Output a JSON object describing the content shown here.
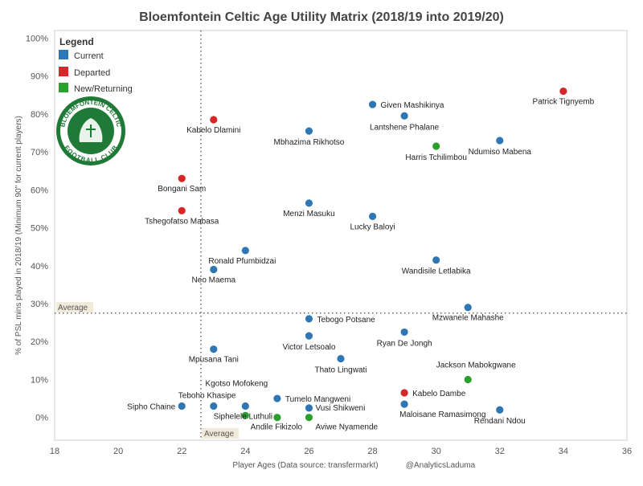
{
  "chart_data": {
    "type": "scatter",
    "title": "Bloemfontein Celtic Age Utility Matrix (2018/19 into 2019/20)",
    "xlabel": "Player Ages (Data source: transfermarkt)",
    "credit": "@AnalyticsLaduma",
    "ylabel": "% of PSL mins played in 2018/19 (Minimum 90\" for current players)",
    "xlim": [
      18,
      36
    ],
    "ylim": [
      -6,
      102
    ],
    "x_ticks": [
      18,
      20,
      22,
      24,
      26,
      28,
      30,
      32,
      34,
      36
    ],
    "y_ticks": [
      0,
      10,
      20,
      30,
      40,
      50,
      60,
      70,
      80,
      90,
      100
    ],
    "y_tick_labels": [
      "0%",
      "10%",
      "20%",
      "30%",
      "40%",
      "50%",
      "60%",
      "70%",
      "80%",
      "90%",
      "100%"
    ],
    "reference_lines": {
      "x_average": 22.6,
      "y_average": 27.5,
      "x_label": "Average",
      "y_label": "Average"
    },
    "grid": false,
    "legend": {
      "title": "Legend",
      "position": "top-left",
      "items": [
        {
          "label": "Current",
          "color": "#2f77b4"
        },
        {
          "label": "Departed",
          "color": "#d62728"
        },
        {
          "label": "New/Returning",
          "color": "#2ca02c"
        }
      ]
    },
    "logo_text": "BLOEMFONTEIN CELTIC FOOTBALL CLUB",
    "series": [
      {
        "name": "Current",
        "color": "#2f77b4",
        "points": [
          {
            "label": "Given Mashikinya",
            "x": 28,
            "y": 82.5
          },
          {
            "label": "Lantshene Phalane",
            "x": 29,
            "y": 79.5
          },
          {
            "label": "Mbhazima Rikhotso",
            "x": 26,
            "y": 75.5
          },
          {
            "label": "Ndumiso Mabena",
            "x": 32,
            "y": 73
          },
          {
            "label": "Menzi Masuku",
            "x": 26,
            "y": 56.5
          },
          {
            "label": "Lucky Baloyi",
            "x": 28,
            "y": 53
          },
          {
            "label": "Ronald Pfumbidzai",
            "x": 24,
            "y": 44
          },
          {
            "label": "Wandisile Letlabika",
            "x": 30,
            "y": 41.5
          },
          {
            "label": "Neo Maema",
            "x": 23,
            "y": 39
          },
          {
            "label": "Mzwanele Mahashe",
            "x": 31,
            "y": 29
          },
          {
            "label": "Tebogo Potsane",
            "x": 26,
            "y": 26
          },
          {
            "label": "Ryan De Jongh",
            "x": 29,
            "y": 22.5
          },
          {
            "label": "Victor Letsoalo",
            "x": 26,
            "y": 21.5
          },
          {
            "label": "Mpusana Tani",
            "x": 23,
            "y": 18
          },
          {
            "label": "Thato Lingwati",
            "x": 27,
            "y": 15.5
          },
          {
            "label": "Kgotso Mofokeng",
            "x": 24,
            "y": 3
          },
          {
            "label": "Tumelo Mangweni",
            "x": 25,
            "y": 5
          },
          {
            "label": "Teboho Khasipe",
            "x": 23,
            "y": 3
          },
          {
            "label": "Sipho Chaine",
            "x": 22,
            "y": 3
          },
          {
            "label": "Vusi Shikweni",
            "x": 26,
            "y": 2.5
          },
          {
            "label": "Maloisane Ramasimong",
            "x": 29,
            "y": 3.5
          },
          {
            "label": "Rendani Ndou",
            "x": 32,
            "y": 2
          }
        ]
      },
      {
        "name": "Departed",
        "color": "#d62728",
        "points": [
          {
            "label": "Patrick Tignyemb",
            "x": 34,
            "y": 86
          },
          {
            "label": "Kabelo Dlamini",
            "x": 23,
            "y": 78.5
          },
          {
            "label": "Bongani Sam",
            "x": 22,
            "y": 63
          },
          {
            "label": "Tshegofatso Mabasa",
            "x": 22,
            "y": 54.5
          },
          {
            "label": "Kabelo Dambe",
            "x": 29,
            "y": 6.5
          }
        ]
      },
      {
        "name": "New/Returning",
        "color": "#2ca02c",
        "points": [
          {
            "label": "Harris Tchilimbou",
            "x": 30,
            "y": 71.5
          },
          {
            "label": "Jackson Mabokgwane",
            "x": 31,
            "y": 10
          },
          {
            "label": "Siphelele Luthuli",
            "x": 24,
            "y": 0.5
          },
          {
            "label": "Andile Fikizolo",
            "x": 25,
            "y": 0
          },
          {
            "label": "Aviwe Nyamende",
            "x": 26,
            "y": 0
          }
        ]
      }
    ]
  }
}
